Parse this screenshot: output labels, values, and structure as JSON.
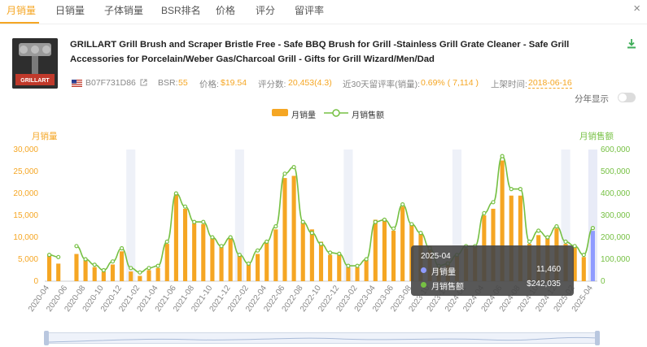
{
  "tabs": [
    {
      "label": "月销量",
      "active": true
    },
    {
      "label": "日销量",
      "active": false
    },
    {
      "label": "子体销量",
      "active": false
    },
    {
      "label": "BSR排名",
      "active": false
    },
    {
      "label": "价格",
      "active": false
    },
    {
      "label": "评分",
      "active": false
    },
    {
      "label": "留评率",
      "active": false
    }
  ],
  "close_label": "×",
  "product": {
    "title": "GRILLART Grill Brush and Scraper Bristle Free - Safe BBQ Brush for Grill -Stainless Grill Grate Cleaner - Safe Grill Accessories for Porcelain/Weber Gas/Charcoal Grill - Gifts for Grill Wizard/Men/Dad",
    "image_text": "GRILLART",
    "asin": "B07F731D86",
    "bsr_label": "BSR:",
    "bsr_value": "55",
    "price_label": "价格:",
    "price_value": "$19.54",
    "rating_label": "评分数:",
    "rating_value": "20,453(4.3)",
    "review_rate_label": "近30天留评率(销量):",
    "review_rate_value": "0.69% ( 7,114 )",
    "launch_label": "上架时间:",
    "launch_value": "2018-06-16"
  },
  "toggle_label": "分年显示",
  "toggle_on": false,
  "colors": {
    "bar": "#f5a623",
    "line": "#76c043",
    "tooltip_sales": "#8f9bff",
    "tooltip_revenue": "#76c043"
  },
  "icons": [
    "download-icon",
    "us-flag-icon",
    "external-link-icon",
    "close-icon"
  ],
  "chart_data": {
    "type": "bar",
    "legend": {
      "position": "top-center",
      "items": [
        "月销量",
        "月销售额"
      ]
    },
    "ylabel_left": "月销量",
    "ylabel_right": "月销售额",
    "yticks_left": [
      "30,000",
      "25,000",
      "20,000",
      "15,000",
      "10,000",
      "5,000",
      "0"
    ],
    "yticks_right": [
      "600,000",
      "500,000",
      "400,000",
      "300,000",
      "200,000",
      "100,000",
      "0"
    ],
    "ylim_left": [
      0,
      30000
    ],
    "ylim_right": [
      0,
      600000
    ],
    "x_tick_labels": [
      "2020-04",
      "2020-06",
      "2020-08",
      "2020-10",
      "2020-12",
      "2021-02",
      "2021-04",
      "2021-06",
      "2021-08",
      "2021-10",
      "2021-12",
      "2022-02",
      "2022-04",
      "2022-06",
      "2022-08",
      "2022-10",
      "2022-12",
      "2023-02",
      "2023-04",
      "2023-06",
      "2023-08",
      "2023-10",
      "2023-12",
      "2024-02",
      "2024-04",
      "2024-06",
      "2024-08",
      "2024-10",
      "2024-12",
      "2025-02",
      "2025-04"
    ],
    "categories": [
      "2020-04",
      "2020-05",
      "2020-06",
      "2020-07",
      "2020-08",
      "2020-09",
      "2020-10",
      "2020-11",
      "2020-12",
      "2021-01",
      "2021-02",
      "2021-03",
      "2021-04",
      "2021-05",
      "2021-06",
      "2021-07",
      "2021-08",
      "2021-09",
      "2021-10",
      "2021-11",
      "2021-12",
      "2022-01",
      "2022-02",
      "2022-03",
      "2022-04",
      "2022-05",
      "2022-06",
      "2022-07",
      "2022-08",
      "2022-09",
      "2022-10",
      "2022-11",
      "2022-12",
      "2023-01",
      "2023-02",
      "2023-03",
      "2023-04",
      "2023-05",
      "2023-06",
      "2023-07",
      "2023-08",
      "2023-09",
      "2023-10",
      "2023-11",
      "2023-12",
      "2024-01",
      "2024-02",
      "2024-03",
      "2024-04",
      "2024-05",
      "2024-06",
      "2024-07",
      "2024-08",
      "2024-09",
      "2024-10",
      "2024-11",
      "2024-12",
      "2025-01",
      "2025-02",
      "2025-03",
      "2025-04"
    ],
    "series": [
      {
        "name": "月销量",
        "axis": "left",
        "values": [
          6000,
          4000,
          null,
          6200,
          4800,
          3200,
          2200,
          3800,
          6800,
          2200,
          1200,
          2500,
          3000,
          8500,
          20000,
          16500,
          13200,
          13000,
          9800,
          7800,
          9800,
          5800,
          3800,
          6200,
          8800,
          11800,
          23500,
          24000,
          13500,
          11800,
          9000,
          6000,
          6000,
          3200,
          3200,
          4800,
          14000,
          14200,
          11500,
          17000,
          13000,
          10800,
          8000,
          3500,
          4500,
          5800,
          7500,
          8200,
          15000,
          16500,
          27500,
          19500,
          19500,
          8500,
          10500,
          10000,
          12000,
          8500,
          8000,
          5500,
          11460
        ]
      },
      {
        "name": "月销售额",
        "axis": "right",
        "values": [
          120000,
          110000,
          null,
          160000,
          100000,
          75000,
          50000,
          90000,
          150000,
          60000,
          40000,
          60000,
          70000,
          180000,
          400000,
          340000,
          270000,
          270000,
          200000,
          160000,
          200000,
          120000,
          80000,
          140000,
          180000,
          250000,
          490000,
          520000,
          270000,
          220000,
          170000,
          130000,
          125000,
          70000,
          70000,
          100000,
          270000,
          280000,
          240000,
          350000,
          260000,
          220000,
          150000,
          70000,
          80000,
          120000,
          160000,
          160000,
          310000,
          360000,
          570000,
          420000,
          420000,
          180000,
          230000,
          200000,
          250000,
          180000,
          160000,
          120000,
          242035
        ]
      }
    ],
    "tooltip": {
      "date": "2025-04",
      "rows": [
        {
          "name": "月销量",
          "value": "11,460"
        },
        {
          "name": "月销售额",
          "value": "$242,035"
        }
      ]
    },
    "highlight_category": "2025-04",
    "grid": false
  }
}
